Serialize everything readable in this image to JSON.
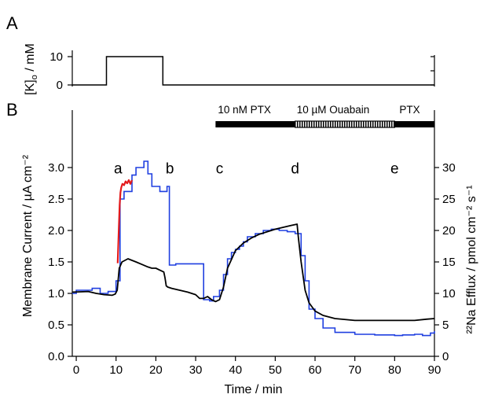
{
  "figure": {
    "panel_a_label": "A",
    "panel_b_label": "B"
  },
  "chart_data": [
    {
      "panel": "A",
      "type": "line",
      "ylabel_parts": [
        "[K]",
        "o",
        " / mM"
      ],
      "yticks": [
        0,
        10
      ],
      "ylim": [
        0,
        10
      ],
      "xlim": [
        0,
        90
      ],
      "series": [
        {
          "color": "#000000",
          "x": [
            0,
            8.5,
            8.5,
            22.5,
            22.5,
            90
          ],
          "y": [
            0,
            0,
            10,
            10,
            0,
            0
          ]
        }
      ]
    },
    {
      "panel": "B",
      "type": "line",
      "xlabel": "Time / min",
      "xlim": [
        -1,
        90
      ],
      "xticks": [
        0,
        10,
        20,
        30,
        40,
        50,
        60,
        70,
        80,
        90
      ],
      "ylim_left": [
        0,
        3.5
      ],
      "yticks_left": [
        0.0,
        0.5,
        1.0,
        1.5,
        2.0,
        2.5,
        3.0
      ],
      "ytick_labels_left": [
        "0.0",
        "0.5",
        "1.0",
        "1.5",
        "2.0",
        "2.5",
        "3.0"
      ],
      "ylabel_left": "Membrane Current / µA cm⁻²",
      "ylim_right": [
        0,
        35
      ],
      "yticks_right": [
        0,
        5,
        10,
        15,
        20,
        25,
        30
      ],
      "ylabel_right": "²²Na Efflux / pmol cm⁻² s⁻¹",
      "annotations": [
        {
          "text": "a",
          "x": 10.5,
          "y": 2.98
        },
        {
          "text": "b",
          "x": 23.5,
          "y": 2.98
        },
        {
          "text": "c",
          "x": 36,
          "y": 2.98
        },
        {
          "text": "d",
          "x": 55,
          "y": 2.98
        },
        {
          "text": "e",
          "x": 80,
          "y": 2.98
        }
      ],
      "treatment_bars": [
        {
          "label": "10 nM PTX",
          "x_start": 35,
          "x_end": 55,
          "style": "solid"
        },
        {
          "label": "10 µM Ouabain",
          "x_start": 55,
          "x_end": 80,
          "style": "hatched"
        },
        {
          "label": "PTX",
          "x_start": 80,
          "x_end": 90,
          "style": "solid"
        }
      ],
      "series": [
        {
          "color": "#000000",
          "axis": "left",
          "x": [
            -1,
            3,
            5,
            7,
            9,
            9.8,
            10.3,
            10.8,
            11.5,
            13,
            15,
            16.5,
            18,
            19,
            20,
            21,
            22,
            22.3,
            22.6,
            23,
            24,
            26,
            28,
            30,
            31,
            32,
            33,
            34,
            35,
            36,
            37,
            38,
            40,
            42,
            44,
            46,
            48,
            50,
            52,
            54,
            55.5,
            55.8,
            56.5,
            57.5,
            58.5,
            60,
            62,
            65,
            70,
            75,
            80,
            85,
            88,
            90
          ],
          "y": [
            1.02,
            1.03,
            1.0,
            0.98,
            0.97,
            0.99,
            1.05,
            1.4,
            1.5,
            1.55,
            1.5,
            1.46,
            1.42,
            1.4,
            1.4,
            1.37,
            1.34,
            1.25,
            1.12,
            1.1,
            1.08,
            1.05,
            1.02,
            0.98,
            0.92,
            0.92,
            0.95,
            0.9,
            0.87,
            0.9,
            1.1,
            1.4,
            1.68,
            1.8,
            1.88,
            1.94,
            1.98,
            2.02,
            2.05,
            2.08,
            2.1,
            1.9,
            1.5,
            1.05,
            0.85,
            0.72,
            0.65,
            0.6,
            0.57,
            0.57,
            0.57,
            0.57,
            0.59,
            0.6
          ]
        },
        {
          "color": "#e31a1c",
          "axis": "left",
          "x": [
            10.4,
            10.7,
            10.9,
            11.1,
            11.3,
            11.6,
            12.0,
            12.4,
            12.8,
            13.2,
            13.6,
            14.0
          ],
          "y": [
            1.48,
            2.05,
            2.4,
            2.6,
            2.68,
            2.74,
            2.72,
            2.78,
            2.75,
            2.8,
            2.74,
            2.8
          ]
        },
        {
          "color": "#1f3fe0",
          "axis": "left",
          "step": true,
          "x": [
            -1,
            0,
            4,
            6,
            8,
            10,
            11,
            12,
            14,
            15,
            17,
            18,
            19,
            21,
            22.8,
            23.4,
            25,
            32,
            33.5,
            34.5,
            36,
            37,
            38,
            39,
            40,
            41,
            42,
            43,
            45,
            47,
            49,
            51,
            53,
            55,
            56.5,
            57.5,
            58.5,
            60,
            62,
            65,
            70,
            75,
            80,
            82,
            85,
            87,
            89,
            90
          ],
          "y": [
            1.0,
            1.05,
            1.08,
            1.0,
            1.03,
            1.2,
            2.5,
            2.62,
            2.88,
            3.0,
            3.1,
            2.9,
            2.7,
            2.62,
            2.7,
            1.45,
            1.47,
            0.9,
            0.88,
            0.95,
            1.05,
            1.3,
            1.55,
            1.65,
            1.7,
            1.75,
            1.82,
            1.9,
            1.95,
            2.0,
            2.02,
            2.0,
            1.98,
            1.95,
            1.6,
            1.2,
            0.75,
            0.6,
            0.45,
            0.38,
            0.35,
            0.34,
            0.33,
            0.34,
            0.35,
            0.33,
            0.37,
            0.4
          ]
        }
      ]
    }
  ]
}
